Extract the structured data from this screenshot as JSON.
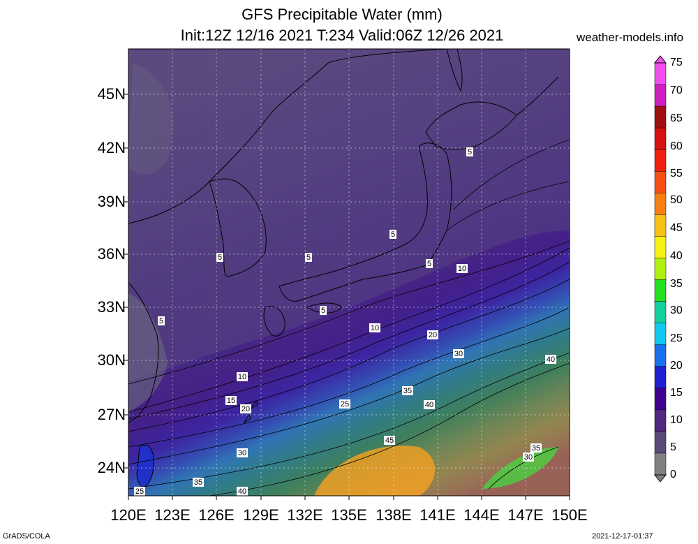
{
  "header": {
    "title_line1": "GFS Precipitable Water (mm)",
    "title_line2": "Init:12Z 12/16 2021 T:234 Valid:06Z 12/26 2021",
    "site": "weather-models.info"
  },
  "footer": {
    "left": "GrADS/COLA",
    "right": "2021-12-17-01:37"
  },
  "map": {
    "lat_labels": [
      "45N",
      "42N",
      "39N",
      "36N",
      "33N",
      "30N",
      "27N",
      "24N"
    ],
    "lon_labels": [
      "120E",
      "123E",
      "126E",
      "129E",
      "132E",
      "135E",
      "138E",
      "141E",
      "144E",
      "147E",
      "150E"
    ],
    "contour_labels": [
      "5",
      "5",
      "5",
      "5",
      "5",
      "5",
      "5",
      "10",
      "10",
      "10",
      "15",
      "20",
      "20",
      "25",
      "25",
      "30",
      "30",
      "30",
      "35",
      "35",
      "35",
      "40",
      "40",
      "40",
      "45"
    ]
  },
  "colorbar": {
    "levels": [
      "75",
      "70",
      "65",
      "60",
      "55",
      "50",
      "45",
      "40",
      "35",
      "30",
      "25",
      "20",
      "15",
      "10",
      "5",
      "0"
    ],
    "colors": [
      "#f050f0",
      "#d020c0",
      "#a01010",
      "#d81010",
      "#f02010",
      "#f85010",
      "#f88010",
      "#f8c010",
      "#f8f010",
      "#b0f010",
      "#20e020",
      "#10d0a0",
      "#10c8f0",
      "#1870f0",
      "#2020d0",
      "#400090",
      "#502880",
      "#5a4a78",
      "#808080"
    ]
  }
}
